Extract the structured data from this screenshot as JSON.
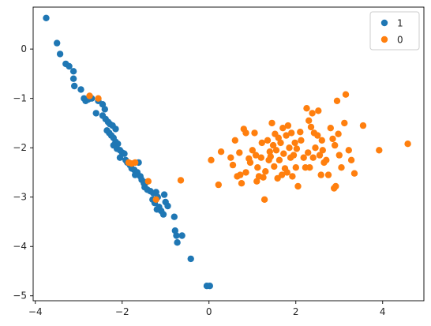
{
  "chart_data": {
    "type": "scatter",
    "title": "",
    "xlabel": "",
    "ylabel": "",
    "xlim": [
      -4.05,
      4.95
    ],
    "ylim": [
      -5.1,
      0.85
    ],
    "xticks": [
      -4,
      -2,
      0,
      2,
      4
    ],
    "yticks": [
      0,
      -1,
      -2,
      -3,
      -4,
      -5
    ],
    "xtick_labels": [
      "−4",
      "−2",
      "0",
      "2",
      "4"
    ],
    "ytick_labels": [
      "0",
      "−1",
      "−2",
      "−3",
      "−4",
      "−5"
    ],
    "grid": false,
    "legend_position": "top-right",
    "series": [
      {
        "name": "1",
        "color": "#1f77b4",
        "points": [
          [
            -3.75,
            0.63
          ],
          [
            -3.5,
            0.12
          ],
          [
            -3.43,
            -0.1
          ],
          [
            -3.3,
            -0.3
          ],
          [
            -3.22,
            -0.35
          ],
          [
            -3.12,
            -0.45
          ],
          [
            -3.12,
            -0.6
          ],
          [
            -3.1,
            -0.75
          ],
          [
            -2.95,
            -0.82
          ],
          [
            -2.88,
            -1.0
          ],
          [
            -2.84,
            -1.05
          ],
          [
            -2.78,
            -1.02
          ],
          [
            -2.7,
            -1.0
          ],
          [
            -2.55,
            -1.05
          ],
          [
            -2.45,
            -1.12
          ],
          [
            -2.4,
            -1.22
          ],
          [
            -2.45,
            -1.35
          ],
          [
            -2.38,
            -1.42
          ],
          [
            -2.32,
            -1.48
          ],
          [
            -2.28,
            -1.52
          ],
          [
            -2.22,
            -1.55
          ],
          [
            -2.35,
            -1.65
          ],
          [
            -2.3,
            -1.7
          ],
          [
            -2.25,
            -1.75
          ],
          [
            -2.2,
            -1.8
          ],
          [
            -2.15,
            -1.88
          ],
          [
            -2.1,
            -1.92
          ],
          [
            -2.2,
            -1.95
          ],
          [
            -2.12,
            -2.02
          ],
          [
            -2.05,
            -2.05
          ],
          [
            -2.0,
            -2.1
          ],
          [
            -1.95,
            -2.12
          ],
          [
            -2.05,
            -2.2
          ],
          [
            -1.92,
            -2.25
          ],
          [
            -1.88,
            -2.3
          ],
          [
            -1.82,
            -2.35
          ],
          [
            -1.78,
            -2.42
          ],
          [
            -1.72,
            -2.45
          ],
          [
            -1.65,
            -2.5
          ],
          [
            -1.58,
            -2.58
          ],
          [
            -1.55,
            -2.65
          ],
          [
            -1.5,
            -2.72
          ],
          [
            -1.48,
            -2.8
          ],
          [
            -1.42,
            -2.85
          ],
          [
            -1.35,
            -2.88
          ],
          [
            -1.28,
            -2.92
          ],
          [
            -1.22,
            -2.9
          ],
          [
            -1.18,
            -3.0
          ],
          [
            -1.25,
            -3.12
          ],
          [
            -1.15,
            -3.2
          ],
          [
            -1.1,
            -3.28
          ],
          [
            -1.05,
            -3.35
          ],
          [
            -1.2,
            -3.25
          ],
          [
            -1.0,
            -3.1
          ],
          [
            -0.95,
            -3.18
          ],
          [
            -1.03,
            -2.95
          ],
          [
            -0.8,
            -3.4
          ],
          [
            -0.78,
            -3.68
          ],
          [
            -0.75,
            -3.78
          ],
          [
            -0.73,
            -3.92
          ],
          [
            -0.62,
            -3.78
          ],
          [
            -0.42,
            -4.25
          ],
          [
            -0.05,
            -4.8
          ],
          [
            0.02,
            -4.8
          ],
          [
            -2.6,
            -1.3
          ],
          [
            -1.7,
            -2.55
          ],
          [
            -1.45,
            -2.7
          ],
          [
            -1.3,
            -3.05
          ],
          [
            -2.15,
            -1.62
          ],
          [
            -1.62,
            -2.3
          ]
        ]
      },
      {
        "name": "0",
        "color": "#ff7f0e",
        "points": [
          [
            -2.75,
            -0.95
          ],
          [
            -2.55,
            -1.0
          ],
          [
            -1.85,
            -2.3
          ],
          [
            -1.78,
            -2.32
          ],
          [
            -1.7,
            -2.3
          ],
          [
            -1.4,
            -2.68
          ],
          [
            -1.22,
            -3.05
          ],
          [
            -0.65,
            -2.66
          ],
          [
            0.05,
            -2.25
          ],
          [
            0.22,
            -2.75
          ],
          [
            0.28,
            -2.08
          ],
          [
            0.5,
            -2.2
          ],
          [
            0.55,
            -2.35
          ],
          [
            0.6,
            -1.85
          ],
          [
            0.7,
            -2.1
          ],
          [
            0.72,
            -2.55
          ],
          [
            0.75,
            -2.72
          ],
          [
            0.8,
            -1.62
          ],
          [
            0.85,
            -2.5
          ],
          [
            0.85,
            -1.7
          ],
          [
            0.92,
            -2.22
          ],
          [
            0.95,
            -2.3
          ],
          [
            1.0,
            -2.05
          ],
          [
            1.05,
            -1.7
          ],
          [
            1.08,
            -2.15
          ],
          [
            1.12,
            -2.4
          ],
          [
            1.15,
            -2.58
          ],
          [
            1.2,
            -2.2
          ],
          [
            1.22,
            -1.9
          ],
          [
            1.25,
            -2.6
          ],
          [
            1.28,
            -3.05
          ],
          [
            1.3,
            -2.48
          ],
          [
            1.35,
            -1.85
          ],
          [
            1.38,
            -2.25
          ],
          [
            1.4,
            -2.08
          ],
          [
            1.45,
            -1.5
          ],
          [
            1.48,
            -1.95
          ],
          [
            1.5,
            -2.38
          ],
          [
            1.52,
            -1.72
          ],
          [
            1.55,
            -2.05
          ],
          [
            1.58,
            -2.62
          ],
          [
            1.6,
            -1.8
          ],
          [
            1.62,
            -2.25
          ],
          [
            1.65,
            -1.9
          ],
          [
            1.68,
            -2.55
          ],
          [
            1.7,
            -1.6
          ],
          [
            1.72,
            -2.12
          ],
          [
            1.75,
            -2.42
          ],
          [
            1.78,
            -1.75
          ],
          [
            1.8,
            -2.5
          ],
          [
            1.82,
            -1.55
          ],
          [
            1.85,
            -2.0
          ],
          [
            1.88,
            -2.2
          ],
          [
            1.9,
            -1.7
          ],
          [
            1.95,
            -2.15
          ],
          [
            1.98,
            -1.9
          ],
          [
            2.0,
            -2.4
          ],
          [
            2.02,
            -2.02
          ],
          [
            2.05,
            -2.78
          ],
          [
            2.1,
            -1.68
          ],
          [
            2.12,
            -1.85
          ],
          [
            2.18,
            -2.2
          ],
          [
            2.22,
            -2.4
          ],
          [
            2.25,
            -1.2
          ],
          [
            2.28,
            -2.1
          ],
          [
            2.3,
            -1.45
          ],
          [
            2.32,
            -2.4
          ],
          [
            2.38,
            -1.3
          ],
          [
            2.4,
            -2.2
          ],
          [
            2.42,
            -1.7
          ],
          [
            2.45,
            -2.0
          ],
          [
            2.5,
            -1.75
          ],
          [
            2.52,
            -1.25
          ],
          [
            2.55,
            -2.15
          ],
          [
            2.58,
            -2.55
          ],
          [
            2.6,
            -1.85
          ],
          [
            2.65,
            -2.3
          ],
          [
            2.7,
            -2.25
          ],
          [
            2.75,
            -2.55
          ],
          [
            2.8,
            -1.6
          ],
          [
            2.85,
            -1.82
          ],
          [
            2.88,
            -2.82
          ],
          [
            2.9,
            -1.95
          ],
          [
            2.92,
            -2.78
          ],
          [
            2.95,
            -1.05
          ],
          [
            3.0,
            -2.15
          ],
          [
            3.05,
            -2.4
          ],
          [
            3.12,
            -1.5
          ],
          [
            3.15,
            -0.92
          ],
          [
            3.22,
            -2.05
          ],
          [
            3.28,
            -2.25
          ],
          [
            3.35,
            -2.52
          ],
          [
            3.55,
            -1.55
          ],
          [
            3.92,
            -2.05
          ],
          [
            4.58,
            -1.92
          ],
          [
            0.65,
            -2.58
          ],
          [
            1.1,
            -2.68
          ],
          [
            1.42,
            -2.18
          ],
          [
            1.92,
            -2.58
          ],
          [
            2.35,
            -1.58
          ],
          [
            2.62,
            -2.05
          ],
          [
            2.98,
            -1.72
          ]
        ]
      }
    ]
  }
}
